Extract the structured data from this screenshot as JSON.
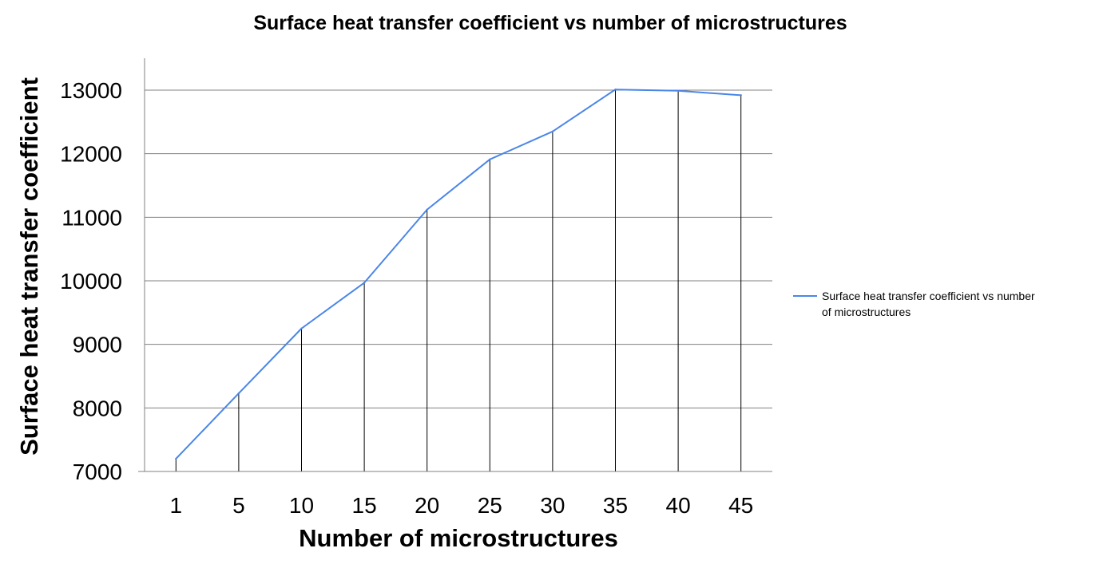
{
  "chart_data": {
    "type": "line",
    "title": "Surface heat transfer coefficient vs number of microstructures",
    "xlabel": "Number of microstructures",
    "ylabel": "Surface heat transfer  coefficient",
    "categories": [
      "1",
      "5",
      "10",
      "15",
      "20",
      "25",
      "30",
      "35",
      "40",
      "45"
    ],
    "series": [
      {
        "name": "Surface heat transfer coefficient vs number of microstructures",
        "values": [
          7200,
          8230,
          9250,
          9970,
          11120,
          11910,
          12350,
          13010,
          12990,
          12920
        ]
      }
    ],
    "ylim": [
      7000,
      13000
    ],
    "yticks": [
      7000,
      8000,
      9000,
      10000,
      11000,
      12000,
      13000
    ],
    "grid": true,
    "drop_lines": true,
    "legend_position": "right",
    "colors": {
      "series_line": "#4a86e8",
      "gridline": "#808080",
      "axis": "#808080",
      "drop_line": "#000000"
    }
  }
}
